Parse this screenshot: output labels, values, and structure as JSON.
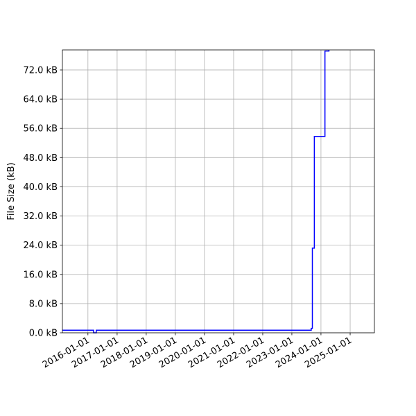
{
  "chart_data": {
    "type": "line",
    "title": "",
    "xlabel": "",
    "ylabel": "File Size (kB)",
    "grid": true,
    "legend": "none",
    "line_color": "#0000ff",
    "x_tick_labels": [
      "2016-01-01",
      "2017-01-01",
      "2018-01-01",
      "2019-01-01",
      "2020-01-01",
      "2021-01-01",
      "2022-01-01",
      "2023-01-01",
      "2024-01-01",
      "2025-01-01"
    ],
    "y_ticks": [
      0,
      8,
      16,
      24,
      32,
      40,
      48,
      56,
      64,
      72
    ],
    "y_tick_labels": [
      "0.0 kB",
      "8.0 kB",
      "16.0 kB",
      "24.0 kB",
      "32.0 kB",
      "40.0 kB",
      "48.0 kB",
      "56.0 kB",
      "64.0 kB",
      "72.0 kB"
    ],
    "xlim": [
      "2015-02-15",
      "2025-11-01"
    ],
    "ylim": [
      0,
      77.5
    ],
    "series": [
      {
        "style": "step",
        "x": [
          "2015-02-15",
          "2016-03-10",
          "2016-03-12",
          "2016-04-10",
          "2016-04-15",
          "2023-09-01",
          "2023-09-15",
          "2023-10-10",
          "2023-11-15",
          "2024-02-20",
          "2024-04-10"
        ],
        "y": [
          0.7,
          0.7,
          0.0,
          0.0,
          0.7,
          1.2,
          23.2,
          53.8,
          53.8,
          77.2,
          77.5
        ]
      }
    ]
  }
}
